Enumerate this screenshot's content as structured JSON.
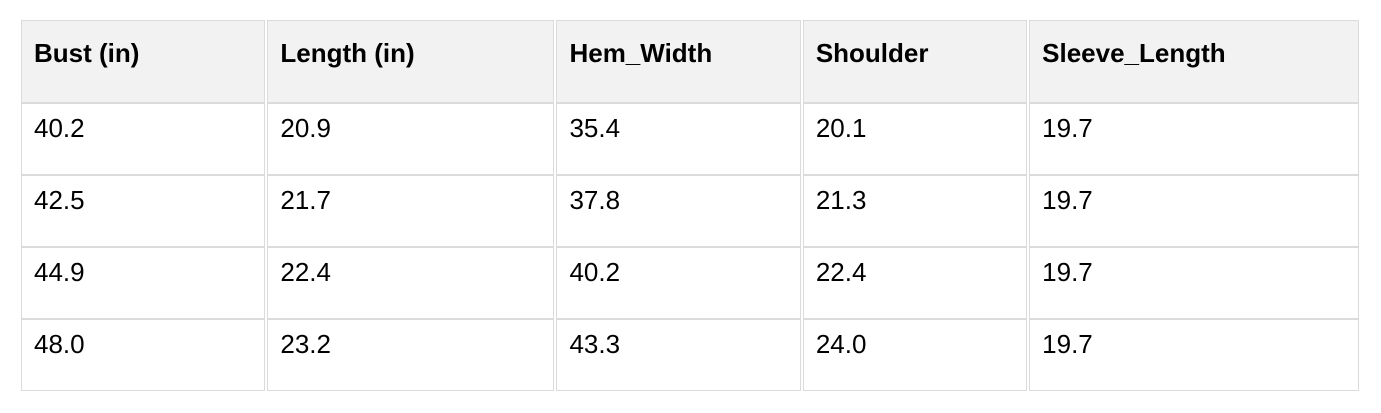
{
  "chart_data": {
    "type": "table",
    "columns": [
      "Bust (in)",
      "Length (in)",
      "Hem_Width",
      "Shoulder",
      "Sleeve_Length"
    ],
    "rows": [
      [
        "40.2",
        "20.9",
        "35.4",
        "20.1",
        "19.7"
      ],
      [
        "42.5",
        "21.7",
        "37.8",
        "21.3",
        "19.7"
      ],
      [
        "44.9",
        "22.4",
        "40.2",
        "22.4",
        "19.7"
      ],
      [
        "48.0",
        "23.2",
        "43.3",
        "24.0",
        "19.7"
      ]
    ]
  },
  "colors": {
    "header_bg": "#f2f2f2",
    "cell_border": "#dbdbdb",
    "row_bg": "#ffffff",
    "text": "#000000",
    "page_bg": "#ffffff"
  }
}
